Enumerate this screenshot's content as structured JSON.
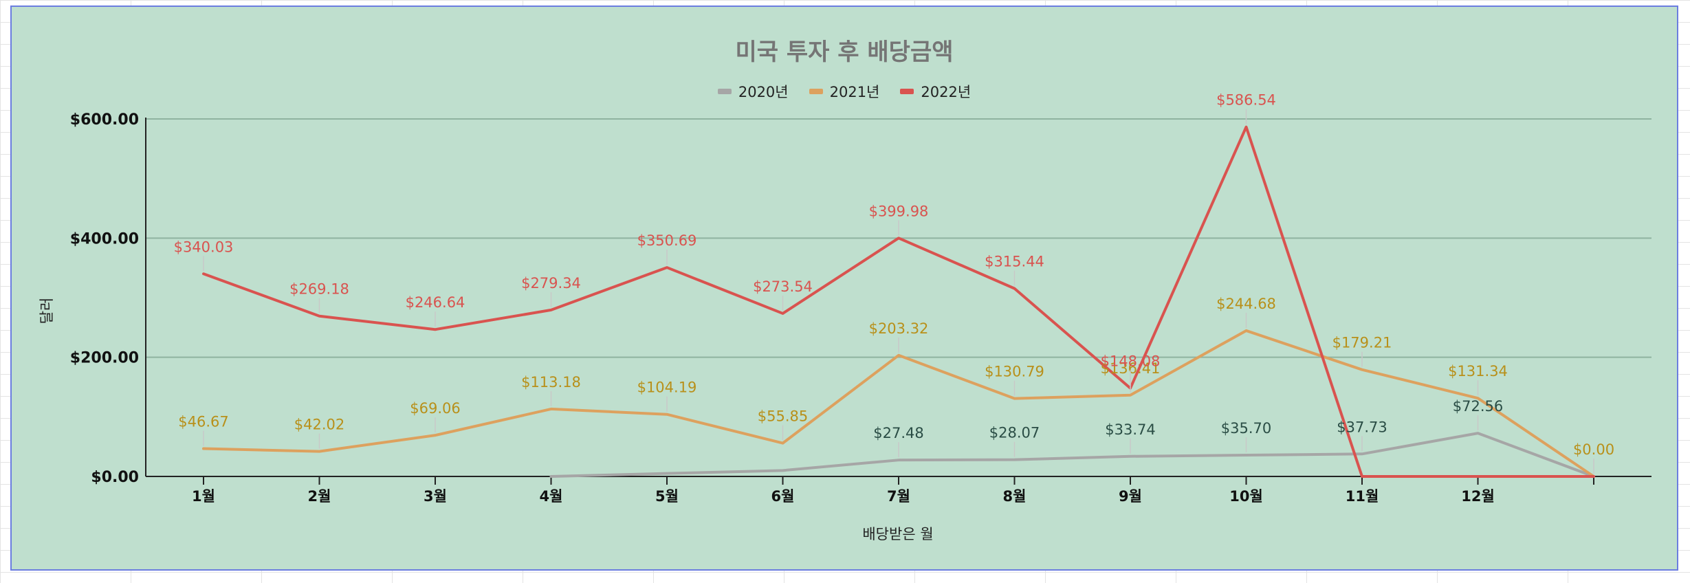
{
  "chart_data": {
    "type": "line",
    "title": "미국 투자 후 배당금액",
    "xlabel": "배당받은 월",
    "ylabel": "달러",
    "categories": [
      "1월",
      "2월",
      "3월",
      "4월",
      "5월",
      "6월",
      "7월",
      "8월",
      "9월",
      "10월",
      "11월",
      "12월",
      ""
    ],
    "ylim": [
      0,
      600
    ],
    "yticks": [
      0,
      200,
      400,
      600
    ],
    "ytick_labels": [
      "$0.00",
      "$200.00",
      "$400.00",
      "$600.00"
    ],
    "grid": true,
    "legend_position": "top",
    "series": [
      {
        "name": "2020년",
        "color": "#a6a6a6",
        "label_color": "#2a4d45",
        "values": [
          null,
          null,
          null,
          0,
          5,
          10,
          27.48,
          28.07,
          33.74,
          35.7,
          37.73,
          72.56,
          0
        ],
        "labels": [
          "",
          "",
          "",
          "",
          "",
          "",
          "$27.48",
          "$28.07",
          "$33.74",
          "$35.70",
          "$37.73",
          "$72.56",
          ""
        ]
      },
      {
        "name": "2021년",
        "color": "#dda15e",
        "label_color": "#b8901a",
        "values": [
          46.67,
          42.02,
          69.06,
          113.18,
          104.19,
          55.85,
          203.32,
          130.79,
          136.41,
          244.68,
          179.21,
          131.34,
          0
        ],
        "labels": [
          "$46.67",
          "$42.02",
          "$69.06",
          "$113.18",
          "$104.19",
          "$55.85",
          "$203.32",
          "$130.79",
          "$136.41",
          "$244.68",
          "$179.21",
          "$131.34",
          "$0.00"
        ]
      },
      {
        "name": "2022년",
        "color": "#d9534f",
        "label_color": "#d9534f",
        "values": [
          340.03,
          269.18,
          246.64,
          279.34,
          350.69,
          273.54,
          399.98,
          315.44,
          148.08,
          586.54,
          0,
          0,
          0
        ],
        "labels": [
          "$340.03",
          "$269.18",
          "$246.64",
          "$279.34",
          "$350.69",
          "$273.54",
          "$399.98",
          "$315.44",
          "$148.08",
          "$586.54",
          "",
          "",
          ""
        ]
      }
    ]
  }
}
